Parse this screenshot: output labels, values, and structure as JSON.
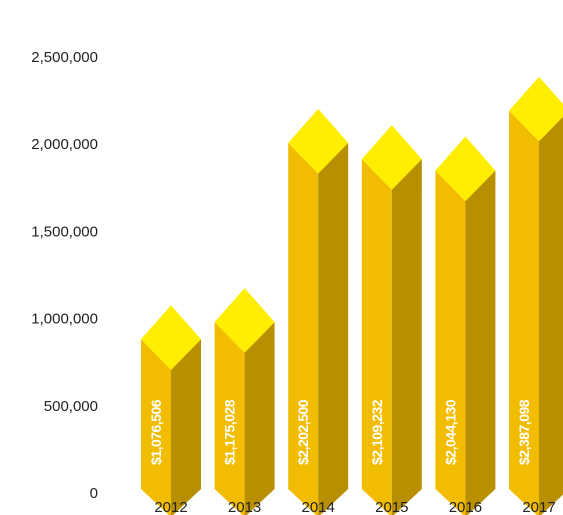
{
  "chart_data": {
    "type": "bar",
    "title": "",
    "xlabel": "",
    "ylabel": "",
    "categories": [
      "2012",
      "2013",
      "2014",
      "2015",
      "2016",
      "2017"
    ],
    "values": [
      1076506,
      1175028,
      2202500,
      2109232,
      2044130,
      2387098
    ],
    "data_labels": [
      "$1,076,506",
      "$1,175,028",
      "$2,202,500",
      "$2,109,232",
      "$2,044,130",
      "$2,387,098"
    ],
    "y_ticks": [
      0,
      500000,
      1000000,
      1500000,
      2000000,
      2500000
    ],
    "y_tick_labels": [
      "0",
      "500,000",
      "1,000,000",
      "1,500,000",
      "2,000,000",
      "2,500,000"
    ],
    "ylim": [
      0,
      2500000
    ],
    "grid": false,
    "legend": "none",
    "style": "3d-prism",
    "colors": {
      "front": "#f2bc00",
      "side": "#b88f00",
      "top": "#ffee00",
      "top_highlight": "#fff700",
      "label_text": "#ffffff",
      "axis_text": "#222222"
    }
  }
}
